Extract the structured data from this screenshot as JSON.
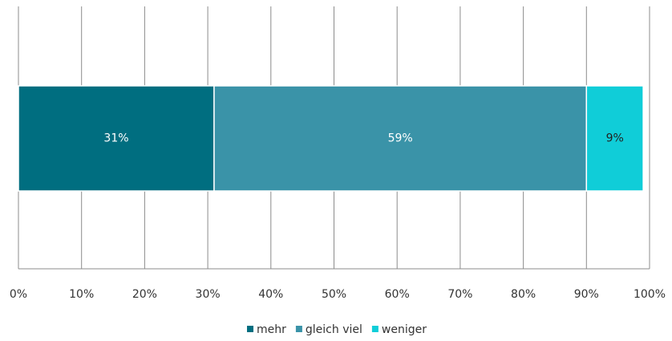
{
  "chart_data": {
    "type": "bar",
    "orientation": "horizontal",
    "stacked": true,
    "categories": [
      null
    ],
    "series": [
      {
        "name": "mehr",
        "color": "#006e80",
        "values": [
          31
        ],
        "value_labels": [
          "31%"
        ]
      },
      {
        "name": "gleich viel",
        "color": "#3a93a8",
        "values": [
          59
        ],
        "value_labels": [
          "59%"
        ]
      },
      {
        "name": "weniger",
        "color": "#10cdd8",
        "values": [
          9
        ],
        "value_labels": [
          "9%"
        ]
      }
    ],
    "xlim": [
      0,
      100
    ],
    "xticks": [
      {
        "value": 0,
        "label": "0%"
      },
      {
        "value": 10,
        "label": "10%"
      },
      {
        "value": 20,
        "label": "20%"
      },
      {
        "value": 30,
        "label": "30%"
      },
      {
        "value": 40,
        "label": "40%"
      },
      {
        "value": 50,
        "label": "50%"
      },
      {
        "value": 60,
        "label": "60%"
      },
      {
        "value": 70,
        "label": "70%"
      },
      {
        "value": 80,
        "label": "80%"
      },
      {
        "value": 90,
        "label": "90%"
      },
      {
        "value": 100,
        "label": "100%"
      }
    ],
    "grid": true,
    "legend": "bottom"
  }
}
